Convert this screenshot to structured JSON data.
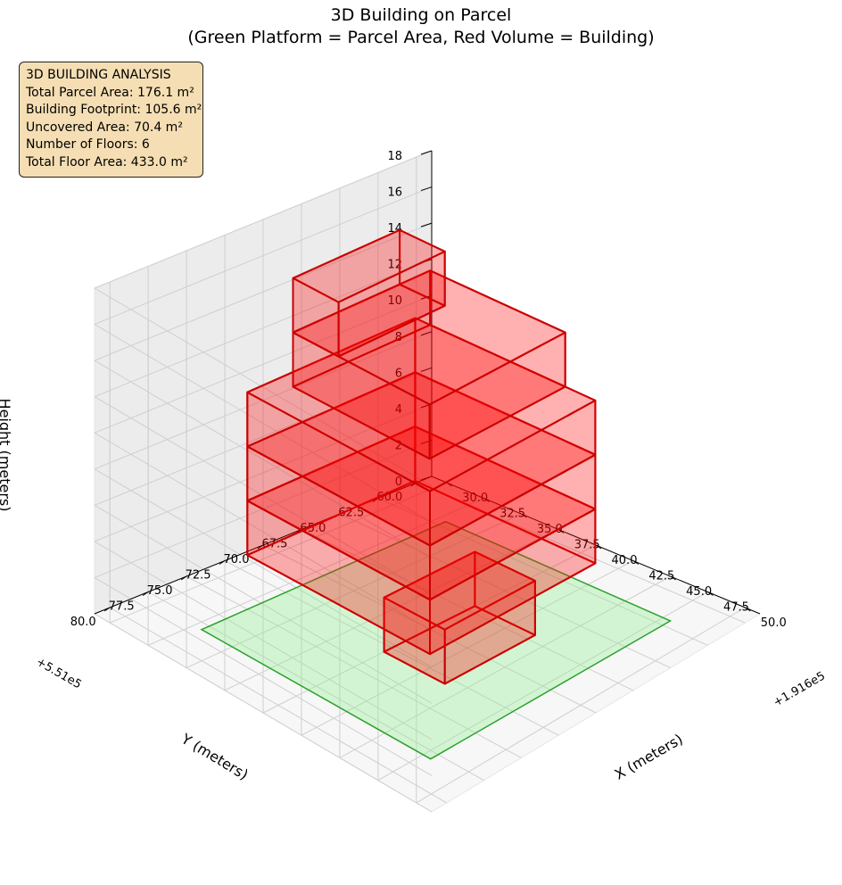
{
  "chart_data": {
    "type": "3d-bar",
    "title": "3D Building on Parcel",
    "subtitle": "(Green Platform = Parcel Area, Red Volume = Building)",
    "xlabel": "X (meters)",
    "ylabel": "Y (meters)",
    "zlabel": "Height (meters)",
    "x_offset_label": "+1.916e5",
    "y_offset_label": "+5.51e5",
    "x_ticks": [
      "30.0",
      "32.5",
      "35.0",
      "37.5",
      "40.0",
      "42.5",
      "45.0",
      "47.5",
      "50.0"
    ],
    "y_ticks": [
      "60.0",
      "62.5",
      "65.0",
      "67.5",
      "70.0",
      "72.5",
      "75.0",
      "77.5",
      "80.0"
    ],
    "z_ticks": [
      "0",
      "2",
      "4",
      "6",
      "8",
      "10",
      "12",
      "14",
      "16",
      "18"
    ],
    "xlim": [
      29,
      51
    ],
    "ylim": [
      59,
      81
    ],
    "zlim": [
      0,
      18
    ],
    "parcel": {
      "label": "Parcel Area",
      "color": "#2ca02c",
      "fill": "#90ee90",
      "x": [
        33,
        48
      ],
      "y": [
        62,
        78
      ],
      "z": 0
    },
    "building_color": "#ff0000",
    "floors": [
      {
        "floor": 1,
        "x": [
          40,
          44
        ],
        "y": [
          67,
          73
        ],
        "z": [
          0,
          3
        ]
      },
      {
        "floor": 2,
        "x": [
          33,
          45
        ],
        "y": [
          64,
          75
        ],
        "z": [
          3,
          6
        ]
      },
      {
        "floor": 3,
        "x": [
          33,
          45
        ],
        "y": [
          64,
          75
        ],
        "z": [
          6,
          9
        ]
      },
      {
        "floor": 4,
        "x": [
          33,
          45
        ],
        "y": [
          64,
          75
        ],
        "z": [
          9,
          12
        ]
      },
      {
        "floor": 5,
        "x": [
          34,
          43
        ],
        "y": [
          64,
          73
        ],
        "z": [
          12,
          15
        ]
      },
      {
        "floor": 6,
        "x": [
          34,
          37
        ],
        "y": [
          66,
          73
        ],
        "z": [
          15,
          18
        ]
      }
    ]
  },
  "info": {
    "heading": "3D BUILDING ANALYSIS",
    "total_parcel_area": "Total Parcel Area: 176.1 m²",
    "building_footprint": "Building Footprint: 105.6 m²",
    "uncovered_area": "Uncovered Area: 70.4 m²",
    "number_of_floors": "Number of Floors: 6",
    "total_floor_area": "Total Floor Area: 433.0 m²"
  }
}
